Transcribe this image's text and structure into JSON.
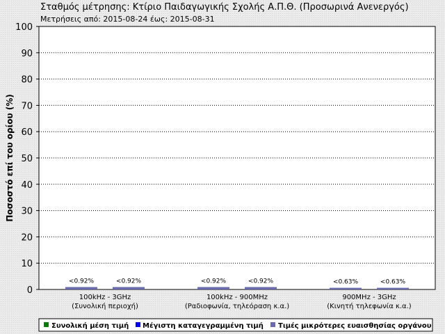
{
  "chart_data": {
    "type": "bar",
    "title": "Σταθμός μέτρησης: Κτίριο Παιδαγωγικής Σχολής Α.Π.Θ. (Προσωρινά Ανενεργός)",
    "subtitle": "Μετρήσεις από: 2015-08-24 έως: 2015-08-31",
    "ylabel": "Ποσοστό επί του ορίου (%)",
    "xlabel": "",
    "ylim": [
      0,
      100
    ],
    "yticks": [
      0,
      10,
      20,
      30,
      40,
      50,
      60,
      70,
      80,
      90,
      100
    ],
    "grid": true,
    "legend_position": "bottom",
    "categories": [
      {
        "line1": "100kHz - 3GHz",
        "line2": "(Συνολική περιοχή)"
      },
      {
        "line1": "100kHz - 900MHz",
        "line2": "(Ραδιοφωνία, τηλεόραση κ.α.)"
      },
      {
        "line1": "900MHz - 3GHz",
        "line2": "(Κινητή τηλεφωνία κ.α.)"
      }
    ],
    "bar_labels": [
      [
        "<0.92%",
        "<0.92%"
      ],
      [
        "<0.92%",
        "<0.92%"
      ],
      [
        "<0.63%",
        "<0.63%"
      ]
    ],
    "values": [
      [
        0.92,
        0.92
      ],
      [
        0.92,
        0.92
      ],
      [
        0.63,
        0.63
      ]
    ],
    "series": [
      {
        "name": "Συνολική μέση τιμή",
        "color": "#008000"
      },
      {
        "name": "Μέγιστη καταγεγραμμένη τιμή",
        "color": "#0000ff"
      },
      {
        "name": "Τιμές μικρότερες ευαισθησίας οργάνου",
        "color": "#6a6ab0"
      }
    ]
  }
}
